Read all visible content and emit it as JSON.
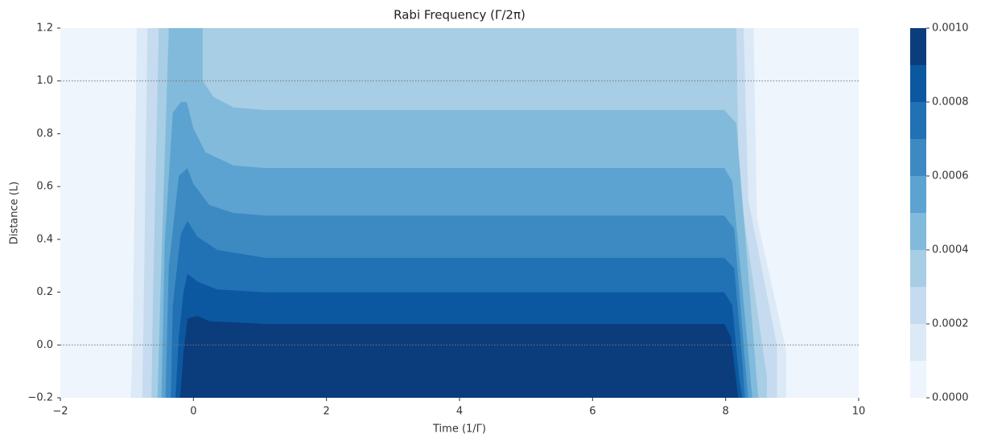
{
  "chart_data": {
    "type": "contour",
    "title": "Rabi Frequency (Γ/2π)",
    "xlabel": "Time (1/Γ)",
    "ylabel": "Distance (L)",
    "xlim": [
      -2,
      10
    ],
    "ylim": [
      -0.2,
      1.2
    ],
    "xticks": [
      {
        "value": -2,
        "label": "−2"
      },
      0,
      2,
      4,
      6,
      8,
      10
    ],
    "yticks": [
      {
        "value": -0.2,
        "label": "−0.2"
      },
      {
        "value": 0,
        "label": "0.0"
      },
      0.2,
      0.4,
      0.6,
      0.8,
      {
        "value": 1,
        "label": "1.0"
      },
      1.2
    ],
    "hlines": [
      0,
      1
    ],
    "levels": [
      0,
      0.0001,
      0.0002,
      0.0003,
      0.0004,
      0.0005,
      0.0006,
      0.0007,
      0.0008,
      0.0009,
      0.001
    ],
    "colors": [
      "#eef5fc",
      "#dce9f6",
      "#c6dbef",
      "#a7cee4",
      "#82badb",
      "#5ca3d1",
      "#3d8ac3",
      "#2171b5",
      "#0c58a0",
      "#0b3d7c"
    ],
    "cbar_ticks": [
      {
        "value": 0,
        "label": "0.0000"
      },
      {
        "value": 0.0002,
        "label": "0.0002"
      },
      {
        "value": 0.0004,
        "label": "0.0004"
      },
      {
        "value": 0.0006,
        "label": "0.0006"
      },
      {
        "value": 0.0008,
        "label": "0.0008"
      },
      {
        "value": 0.001,
        "label": "0.0010"
      }
    ],
    "contours": [
      {
        "level": 0.0001,
        "points": [
          [
            -0.94,
            -0.2
          ],
          [
            -0.91,
            0.06
          ],
          [
            -0.85,
            1.2
          ],
          [
            8.42,
            1.2
          ],
          [
            8.47,
            0.48
          ],
          [
            8.91,
            -0.02
          ],
          [
            8.91,
            -0.2
          ]
        ]
      },
      {
        "level": 0.0002,
        "points": [
          [
            -0.77,
            -0.2
          ],
          [
            -0.75,
            0.09
          ],
          [
            -0.69,
            1.2
          ],
          [
            8.27,
            1.2
          ],
          [
            8.34,
            0.55
          ],
          [
            8.77,
            0.0
          ],
          [
            8.77,
            -0.2
          ]
        ]
      },
      {
        "level": 0.0003,
        "points": [
          [
            -0.63,
            -0.2
          ],
          [
            -0.61,
            0.15
          ],
          [
            -0.52,
            1.2
          ],
          [
            8.16,
            1.2
          ],
          [
            8.2,
            0.61
          ],
          [
            8.62,
            -0.12
          ],
          [
            8.62,
            -0.2
          ]
        ]
      },
      {
        "level": 0.0004,
        "points": [
          [
            -0.54,
            -0.2
          ],
          [
            -0.49,
            0.24
          ],
          [
            -0.37,
            1.2
          ],
          [
            0.14,
            1.2
          ],
          [
            0.14,
            1.0
          ],
          [
            0.3,
            0.94
          ],
          [
            0.6,
            0.9
          ],
          [
            1.08,
            0.89
          ],
          [
            7.98,
            0.89
          ],
          [
            8.16,
            0.84
          ],
          [
            8.4,
            0.08
          ],
          [
            8.49,
            -0.2
          ]
        ]
      },
      {
        "level": 0.0005,
        "points": [
          [
            -0.48,
            -0.2
          ],
          [
            -0.43,
            0.39
          ],
          [
            -0.31,
            0.88
          ],
          [
            -0.19,
            0.92
          ],
          [
            -0.1,
            0.92
          ],
          [
            0.0,
            0.82
          ],
          [
            0.18,
            0.73
          ],
          [
            0.6,
            0.68
          ],
          [
            1.08,
            0.67
          ],
          [
            7.98,
            0.67
          ],
          [
            8.1,
            0.62
          ],
          [
            8.32,
            0.03
          ],
          [
            8.4,
            -0.2
          ]
        ]
      },
      {
        "level": 0.0006,
        "points": [
          [
            -0.42,
            -0.2
          ],
          [
            -0.37,
            0.3
          ],
          [
            -0.22,
            0.64
          ],
          [
            -0.09,
            0.67
          ],
          [
            0.0,
            0.61
          ],
          [
            0.24,
            0.53
          ],
          [
            0.6,
            0.5
          ],
          [
            1.08,
            0.49
          ],
          [
            7.98,
            0.49
          ],
          [
            8.13,
            0.44
          ],
          [
            8.28,
            -0.03
          ],
          [
            8.34,
            -0.2
          ]
        ]
      },
      {
        "level": 0.0007,
        "points": [
          [
            -0.34,
            -0.2
          ],
          [
            -0.31,
            0.15
          ],
          [
            -0.19,
            0.42
          ],
          [
            -0.09,
            0.47
          ],
          [
            0.06,
            0.41
          ],
          [
            0.36,
            0.36
          ],
          [
            1.08,
            0.33
          ],
          [
            7.98,
            0.33
          ],
          [
            8.13,
            0.29
          ],
          [
            8.25,
            -0.06
          ],
          [
            8.29,
            -0.2
          ]
        ]
      },
      {
        "level": 0.0008,
        "points": [
          [
            -0.27,
            -0.2
          ],
          [
            -0.22,
            0.03
          ],
          [
            -0.15,
            0.2
          ],
          [
            -0.09,
            0.27
          ],
          [
            0.06,
            0.24
          ],
          [
            0.36,
            0.21
          ],
          [
            1.08,
            0.2
          ],
          [
            7.98,
            0.2
          ],
          [
            8.1,
            0.15
          ],
          [
            8.2,
            -0.12
          ],
          [
            8.25,
            -0.2
          ]
        ]
      },
      {
        "level": 0.0009,
        "points": [
          [
            -0.2,
            -0.2
          ],
          [
            -0.15,
            -0.03
          ],
          [
            -0.09,
            0.1
          ],
          [
            0.06,
            0.11
          ],
          [
            0.24,
            0.09
          ],
          [
            1.08,
            0.08
          ],
          [
            7.98,
            0.08
          ],
          [
            8.08,
            0.03
          ],
          [
            8.19,
            -0.2
          ]
        ]
      }
    ]
  }
}
